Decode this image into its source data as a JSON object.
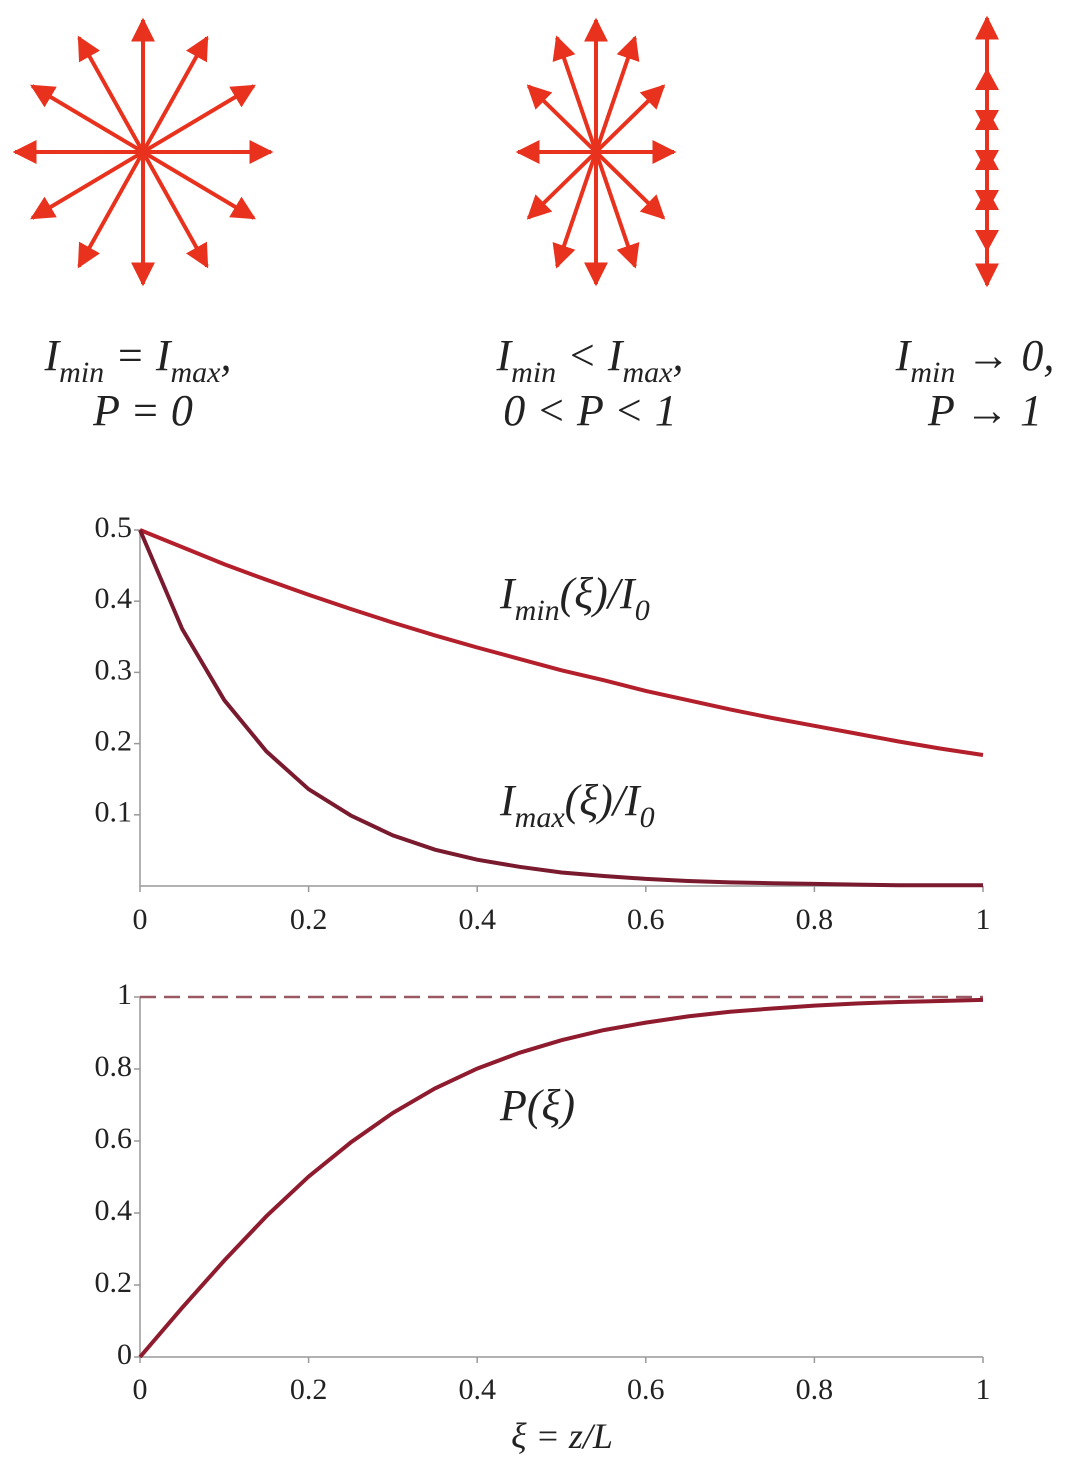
{
  "diagrams": [
    {
      "line1": [
        "I",
        "min",
        " = I",
        "max",
        ","
      ],
      "line2": [
        "P = 0"
      ]
    },
    {
      "line1": [
        "I",
        "min",
        " < I",
        "max",
        ","
      ],
      "line2": [
        "0 < P < 1"
      ]
    },
    {
      "line1": [
        "I",
        "min",
        " → 0,"
      ],
      "line2": [
        "P → 1"
      ]
    }
  ],
  "chart_data": [
    {
      "type": "line",
      "x": [
        0,
        0.05,
        0.1,
        0.15,
        0.2,
        0.25,
        0.3,
        0.35,
        0.4,
        0.45,
        0.5,
        0.55,
        0.6,
        0.65,
        0.7,
        0.75,
        0.8,
        0.85,
        0.9,
        0.95,
        1
      ],
      "series": [
        {
          "color": "#b3202c",
          "values": [
            0.5,
            0.476,
            0.452,
            0.43,
            0.409,
            0.389,
            0.37,
            0.352,
            0.335,
            0.319,
            0.303,
            0.289,
            0.274,
            0.261,
            0.248,
            0.236,
            0.225,
            0.214,
            0.203,
            0.193,
            0.184
          ]
        },
        {
          "color": "#7a1a2e",
          "values": [
            0.5,
            0.361,
            0.261,
            0.189,
            0.136,
            0.099,
            0.071,
            0.051,
            0.037,
            0.027,
            0.019,
            0.014,
            0.01,
            0.007,
            0.005,
            0.004,
            0.003,
            0.002,
            0.001,
            0.001,
            0.001
          ]
        }
      ],
      "annotations": [
        [
          "I",
          "min",
          "(ξ)/I",
          "0"
        ],
        [
          "I",
          "max",
          "(ξ)/I",
          "0"
        ]
      ],
      "xlim": [
        0,
        1
      ],
      "xticks": [
        0,
        0.2,
        0.4,
        0.6,
        0.8,
        1
      ],
      "ylim": [
        0,
        0.5
      ],
      "yticks": [
        0.1,
        0.2,
        0.3,
        0.4,
        0.5
      ]
    },
    {
      "type": "line",
      "x": [
        0,
        0.05,
        0.1,
        0.15,
        0.2,
        0.25,
        0.3,
        0.35,
        0.4,
        0.45,
        0.5,
        0.55,
        0.6,
        0.65,
        0.7,
        0.75,
        0.8,
        0.85,
        0.9,
        0.95,
        1
      ],
      "series": [
        {
          "color": "#8e1b2e",
          "values": [
            0,
            0.137,
            0.268,
            0.391,
            0.501,
            0.596,
            0.678,
            0.746,
            0.801,
            0.845,
            0.88,
            0.908,
            0.929,
            0.946,
            0.959,
            0.968,
            0.976,
            0.982,
            0.986,
            0.989,
            0.992
          ]
        }
      ],
      "reference_line": 1,
      "annotations": [
        [
          "P(ξ)"
        ]
      ],
      "xlabel": "ξ = z/L",
      "xlim": [
        0,
        1
      ],
      "xticks": [
        0,
        0.2,
        0.4,
        0.6,
        0.8,
        1
      ],
      "ylim": [
        0,
        1
      ],
      "yticks": [
        0,
        0.2,
        0.4,
        0.6,
        0.8,
        1
      ]
    }
  ]
}
